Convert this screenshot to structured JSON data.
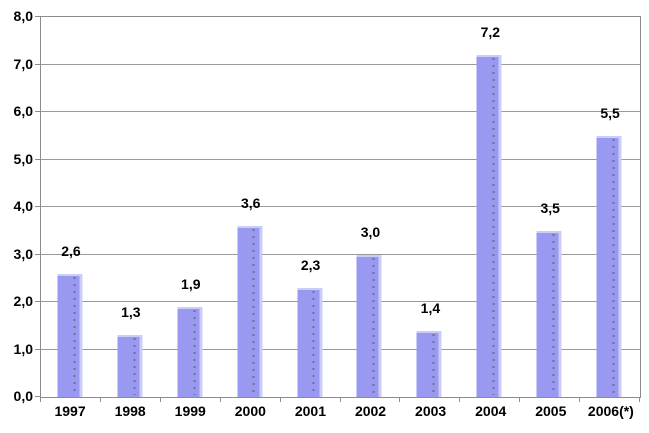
{
  "chart_data": {
    "type": "bar",
    "title": "",
    "xlabel": "",
    "ylabel": "",
    "categories": [
      "1997",
      "1998",
      "1999",
      "2000",
      "2001",
      "2002",
      "2003",
      "2004",
      "2005",
      "2006(*)"
    ],
    "values": [
      2.6,
      1.3,
      1.9,
      3.6,
      2.3,
      3.0,
      1.4,
      7.2,
      3.5,
      5.5
    ],
    "value_labels": [
      "2,6",
      "1,3",
      "1,9",
      "3,6",
      "2,3",
      "3,0",
      "1,4",
      "7,2",
      "3,5",
      "5,5"
    ],
    "ylim": [
      0,
      8
    ],
    "y_tick_step": 1,
    "y_tick_labels": [
      "0,0",
      "1,0",
      "2,0",
      "3,0",
      "4,0",
      "5,0",
      "6,0",
      "7,0",
      "8,0"
    ],
    "grid": true,
    "legend": "none",
    "colors": {
      "bar_fill": "#9999F2",
      "bar_highlight": "#CCCCF8",
      "bar_dot_texture": "#70708F",
      "gridline": "#9A9A9A",
      "axis": "#8C8C8C",
      "label_text": "#000000",
      "background": "#FFFFFF"
    }
  }
}
